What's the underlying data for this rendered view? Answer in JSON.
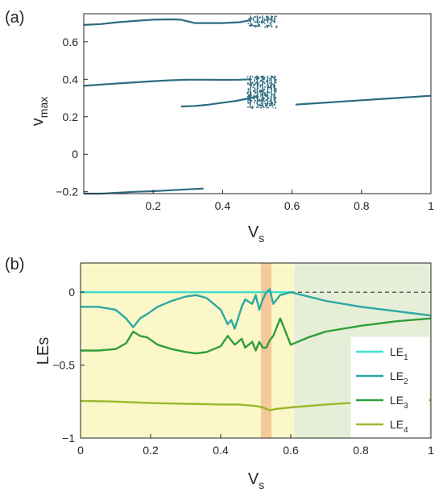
{
  "chart_data": [
    {
      "panel_label": "(a)",
      "type": "scatter",
      "title": "",
      "xlabel": "V",
      "xlabel_sub": "s",
      "ylabel": "v",
      "ylabel_sub": "max",
      "xlim": [
        0,
        1
      ],
      "ylim": [
        -0.21,
        0.75
      ],
      "xticks": [
        0.2,
        0.4,
        0.6,
        0.8,
        1
      ],
      "xtick_labels": [
        "0.2",
        "0.4",
        "0.6",
        "0.8",
        "1"
      ],
      "yticks": [
        -0.2,
        0,
        0.2,
        0.4,
        0.6
      ],
      "ytick_labels": [
        "−0.2",
        "0",
        "0.2",
        "0.4",
        "0.6"
      ],
      "series_color": "#2e6b80",
      "branches": [
        {
          "x": [
            0.0,
            0.05,
            0.1,
            0.15,
            0.2,
            0.25,
            0.28,
            0.32,
            0.36,
            0.4,
            0.45,
            0.48
          ],
          "y": [
            0.69,
            0.695,
            0.705,
            0.712,
            0.718,
            0.72,
            0.718,
            0.7,
            0.7,
            0.7,
            0.705,
            0.715
          ]
        },
        {
          "x": [
            0.0,
            0.05,
            0.1,
            0.15,
            0.2,
            0.25,
            0.3,
            0.35,
            0.4,
            0.45,
            0.48
          ],
          "y": [
            0.365,
            0.372,
            0.378,
            0.384,
            0.39,
            0.395,
            0.398,
            0.398,
            0.397,
            0.398,
            0.4
          ]
        },
        {
          "x": [
            0.0,
            0.05,
            0.1,
            0.15,
            0.2,
            0.25,
            0.3,
            0.345
          ],
          "y": [
            -0.21,
            -0.21,
            -0.205,
            -0.2,
            -0.197,
            -0.192,
            -0.187,
            -0.183
          ]
        },
        {
          "x": [
            0.28,
            0.32,
            0.36,
            0.4,
            0.44,
            0.48,
            0.5
          ],
          "y": [
            0.255,
            0.258,
            0.265,
            0.275,
            0.285,
            0.3,
            0.31
          ]
        },
        {
          "x": [
            0.61,
            0.65,
            0.7,
            0.75,
            0.8,
            0.85,
            0.9,
            0.95,
            1.0
          ],
          "y": [
            0.265,
            0.27,
            0.276,
            0.282,
            0.288,
            0.294,
            0.3,
            0.306,
            0.312
          ]
        }
      ],
      "chaotic_region": {
        "x_range": [
          0.47,
          0.555
        ],
        "y_bands": [
          [
            0.25,
            0.42
          ],
          [
            0.68,
            0.74
          ]
        ]
      }
    },
    {
      "panel_label": "(b)",
      "type": "line",
      "title": "",
      "xlabel": "V",
      "xlabel_sub": "s",
      "ylabel": "LEs",
      "xlim": [
        0,
        1
      ],
      "ylim": [
        -1,
        0.2
      ],
      "xticks": [
        0,
        0.2,
        0.4,
        0.6,
        0.8,
        1
      ],
      "xtick_labels": [
        "0",
        "0.2",
        "0.4",
        "0.6",
        "0.8",
        "1"
      ],
      "yticks": [
        0,
        -0.5,
        -1
      ],
      "ytick_labels": [
        "0",
        "−0.5",
        "−1"
      ],
      "shaded_regions": [
        {
          "x_range": [
            0,
            0.61
          ],
          "color": "#fbf7c8"
        },
        {
          "x_range": [
            0.515,
            0.545
          ],
          "color": "#f6c99a"
        },
        {
          "x_range": [
            0.61,
            1
          ],
          "color": "#e6eed8"
        }
      ],
      "zero_line": {
        "y": 0,
        "x_range": [
          0.6,
          1
        ],
        "style": "dashed"
      },
      "legend_position": "bottom-right",
      "series": [
        {
          "name": "LE",
          "sub": "1",
          "color": "#40e0d0",
          "x": [
            0,
            0.1,
            0.2,
            0.3,
            0.4,
            0.5,
            0.6,
            0.61
          ],
          "y": [
            0,
            0,
            0,
            0,
            0,
            0,
            0,
            0
          ]
        },
        {
          "name": "LE",
          "sub": "2",
          "color": "#2aa9a0",
          "x": [
            0,
            0.05,
            0.1,
            0.13,
            0.15,
            0.17,
            0.19,
            0.22,
            0.26,
            0.3,
            0.33,
            0.36,
            0.4,
            0.42,
            0.43,
            0.44,
            0.46,
            0.47,
            0.49,
            0.5,
            0.51,
            0.52,
            0.53,
            0.54,
            0.55,
            0.57,
            0.6,
            0.65,
            0.7,
            0.8,
            0.9,
            1.0
          ],
          "y": [
            -0.1,
            -0.1,
            -0.12,
            -0.18,
            -0.24,
            -0.18,
            -0.15,
            -0.1,
            -0.06,
            -0.03,
            -0.02,
            -0.04,
            -0.12,
            -0.22,
            -0.19,
            -0.25,
            -0.1,
            -0.05,
            -0.08,
            -0.02,
            -0.12,
            -0.05,
            0.0,
            0.02,
            -0.08,
            -0.02,
            0.0,
            -0.03,
            -0.06,
            -0.1,
            -0.13,
            -0.16
          ]
        },
        {
          "name": "LE",
          "sub": "3",
          "color": "#2f9e3a",
          "x": [
            0,
            0.05,
            0.1,
            0.13,
            0.15,
            0.17,
            0.19,
            0.22,
            0.26,
            0.3,
            0.33,
            0.36,
            0.4,
            0.42,
            0.43,
            0.44,
            0.46,
            0.47,
            0.49,
            0.5,
            0.51,
            0.52,
            0.53,
            0.54,
            0.55,
            0.57,
            0.6,
            0.65,
            0.7,
            0.8,
            0.9,
            1.0
          ],
          "y": [
            -0.4,
            -0.4,
            -0.39,
            -0.35,
            -0.27,
            -0.3,
            -0.31,
            -0.36,
            -0.39,
            -0.41,
            -0.42,
            -0.41,
            -0.37,
            -0.3,
            -0.33,
            -0.36,
            -0.32,
            -0.38,
            -0.34,
            -0.4,
            -0.34,
            -0.38,
            -0.38,
            -0.33,
            -0.3,
            -0.18,
            -0.36,
            -0.31,
            -0.27,
            -0.23,
            -0.2,
            -0.18
          ]
        },
        {
          "name": "LE",
          "sub": "4",
          "color": "#9ab82a",
          "x": [
            0,
            0.1,
            0.2,
            0.3,
            0.4,
            0.45,
            0.5,
            0.52,
            0.54,
            0.56,
            0.6,
            0.7,
            0.8,
            0.9,
            1.0
          ],
          "y": [
            -0.745,
            -0.75,
            -0.76,
            -0.765,
            -0.77,
            -0.77,
            -0.78,
            -0.79,
            -0.81,
            -0.8,
            -0.79,
            -0.77,
            -0.755,
            -0.745,
            -0.74
          ]
        }
      ]
    }
  ]
}
